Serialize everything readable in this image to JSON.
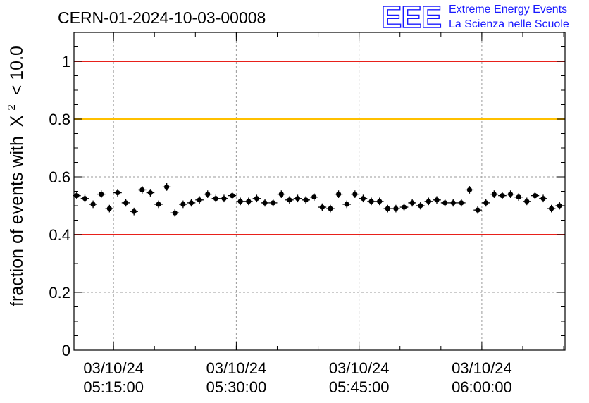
{
  "header": {
    "run_id": "CERN-01-2024-10-03-00008",
    "logo_text": "EEE",
    "org_line1": "Extreme Energy Events",
    "org_line2": "La Scienza nelle Scuole"
  },
  "colors": {
    "reference_red": "#e8201a",
    "reference_orange": "#ffc000",
    "logo_blue": "#1a1aff",
    "marker": "#000000",
    "grid": "#9a9a9a"
  },
  "chart_data": {
    "type": "scatter",
    "title": "CERN-01-2024-10-03-00008",
    "ylabel_prefix": "fraction of events with",
    "ylabel_symbol": "X",
    "ylabel_exponent": "2",
    "ylabel_suffix": "< 10.0",
    "xlabel": "",
    "ylim": [
      0,
      1.1
    ],
    "xlim": [
      "05:10:10",
      "06:10:10"
    ],
    "y_ticks": [
      {
        "value": 0,
        "label": "0"
      },
      {
        "value": 0.2,
        "label": "0.2"
      },
      {
        "value": 0.4,
        "label": "0.4"
      },
      {
        "value": 0.6,
        "label": "0.6"
      },
      {
        "value": 0.8,
        "label": "0.8"
      },
      {
        "value": 1,
        "label": "1"
      }
    ],
    "x_ticks": [
      {
        "time": "05:15:00",
        "date_label": "03/10/24",
        "time_label": "05:15:00"
      },
      {
        "time": "05:30:00",
        "date_label": "03/10/24",
        "time_label": "05:30:00"
      },
      {
        "time": "05:45:00",
        "date_label": "03/10/24",
        "time_label": "05:45:00"
      },
      {
        "time": "06:00:00",
        "date_label": "03/10/24",
        "time_label": "06:00:00"
      }
    ],
    "grid": true,
    "reference_lines": [
      {
        "y": 1.0,
        "color": "#e8201a"
      },
      {
        "y": 0.8,
        "color": "#ffc000"
      },
      {
        "y": 0.4,
        "color": "#e8201a"
      }
    ],
    "x_bin_width_seconds": 60,
    "y_error": 0.013,
    "series": [
      {
        "x": [
          "05:10:30",
          "05:11:30",
          "05:12:30",
          "05:13:30",
          "05:14:30",
          "05:15:30",
          "05:16:30",
          "05:17:30",
          "05:18:30",
          "05:19:30",
          "05:20:30",
          "05:21:30",
          "05:22:30",
          "05:23:30",
          "05:24:30",
          "05:25:30",
          "05:26:30",
          "05:27:30",
          "05:28:30",
          "05:29:30",
          "05:30:30",
          "05:31:30",
          "05:32:30",
          "05:33:30",
          "05:34:30",
          "05:35:30",
          "05:36:30",
          "05:37:30",
          "05:38:30",
          "05:39:30",
          "05:40:30",
          "05:41:30",
          "05:42:30",
          "05:43:30",
          "05:44:30",
          "05:45:30",
          "05:46:30",
          "05:47:30",
          "05:48:30",
          "05:49:30",
          "05:50:30",
          "05:51:30",
          "05:52:30",
          "05:53:30",
          "05:54:30",
          "05:55:30",
          "05:56:30",
          "05:57:30",
          "05:58:30",
          "05:59:30",
          "06:00:30",
          "06:01:30",
          "06:02:30",
          "06:03:30",
          "06:04:30",
          "06:05:30",
          "06:06:30",
          "06:07:30",
          "06:08:30",
          "06:09:30"
        ],
        "y": [
          0.535,
          0.525,
          0.505,
          0.54,
          0.49,
          0.545,
          0.51,
          0.48,
          0.555,
          0.545,
          0.505,
          0.565,
          0.475,
          0.505,
          0.51,
          0.52,
          0.54,
          0.525,
          0.525,
          0.535,
          0.515,
          0.515,
          0.525,
          0.51,
          0.51,
          0.54,
          0.52,
          0.525,
          0.52,
          0.53,
          0.495,
          0.49,
          0.54,
          0.505,
          0.54,
          0.525,
          0.515,
          0.515,
          0.49,
          0.49,
          0.495,
          0.51,
          0.5,
          0.515,
          0.52,
          0.51,
          0.51,
          0.51,
          0.555,
          0.485,
          0.51,
          0.54,
          0.535,
          0.54,
          0.53,
          0.515,
          0.535,
          0.525,
          0.49,
          0.5
        ]
      }
    ]
  }
}
